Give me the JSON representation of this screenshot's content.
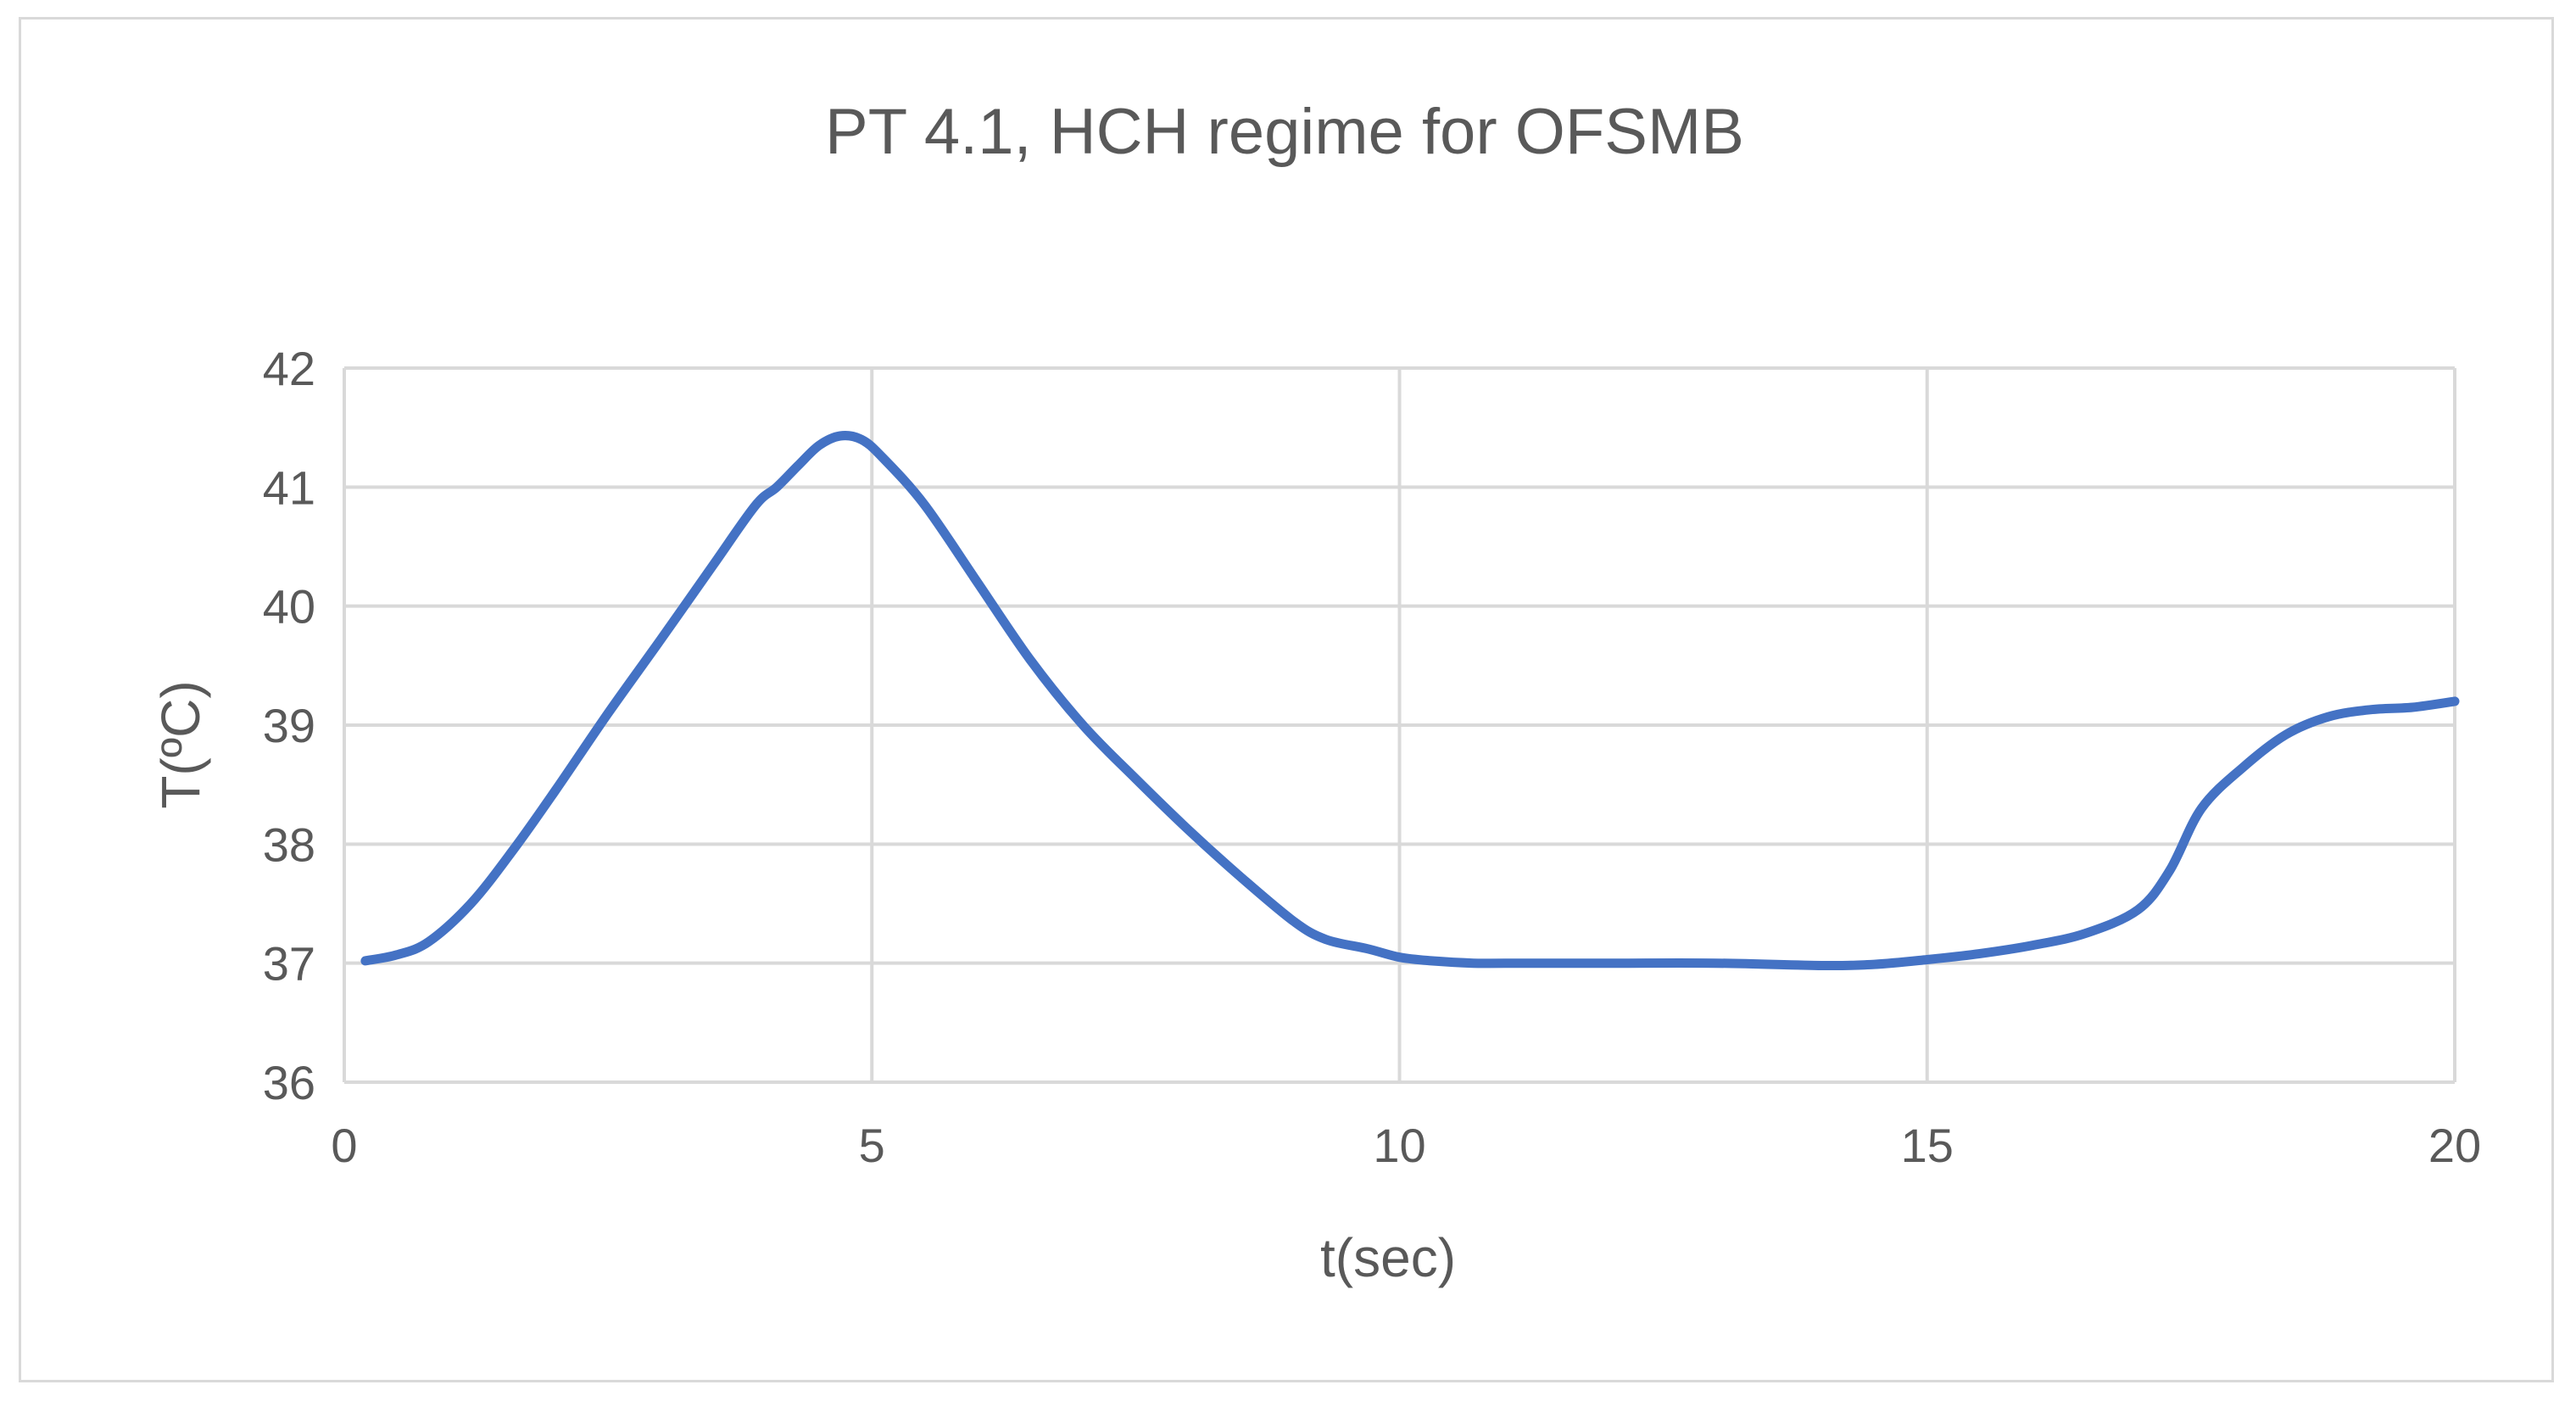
{
  "chart_data": {
    "type": "line",
    "title": "PT 4.1, HCH regime for OFSMB",
    "xlabel": "t(sec)",
    "ylabel": "T(ºC)",
    "xlim": [
      0,
      20
    ],
    "ylim": [
      36,
      42
    ],
    "xticks": [
      0,
      5,
      10,
      15,
      20
    ],
    "yticks": [
      36,
      37,
      38,
      39,
      40,
      41,
      42
    ],
    "grid": true,
    "legend": "none",
    "series": [
      {
        "color": "#4472c4",
        "x": [
          0.2,
          0.5,
          0.8,
          1.2,
          1.6,
          2.0,
          2.5,
          3.0,
          3.5,
          3.9,
          4.1,
          4.3,
          4.5,
          4.7,
          4.9,
          5.1,
          5.5,
          6.0,
          6.5,
          7.0,
          7.5,
          8.0,
          8.5,
          9.0,
          9.3,
          9.7,
          10.0,
          10.3,
          10.7,
          11.0,
          12.0,
          13.0,
          14.0,
          14.5,
          15.0,
          15.5,
          16.0,
          16.5,
          17.0,
          17.3,
          17.6,
          18.0,
          18.4,
          18.8,
          19.2,
          19.6,
          20.0
        ],
        "y": [
          37.02,
          37.07,
          37.18,
          37.5,
          37.95,
          38.45,
          39.1,
          39.72,
          40.35,
          40.85,
          41.0,
          41.18,
          41.35,
          41.43,
          41.4,
          41.25,
          40.85,
          40.2,
          39.55,
          39.0,
          38.55,
          38.12,
          37.72,
          37.35,
          37.2,
          37.12,
          37.05,
          37.02,
          37.0,
          37.0,
          37.0,
          37.0,
          36.98,
          36.99,
          37.03,
          37.08,
          37.15,
          37.25,
          37.45,
          37.78,
          38.3,
          38.65,
          38.92,
          39.07,
          39.13,
          39.15,
          39.2
        ]
      }
    ]
  }
}
